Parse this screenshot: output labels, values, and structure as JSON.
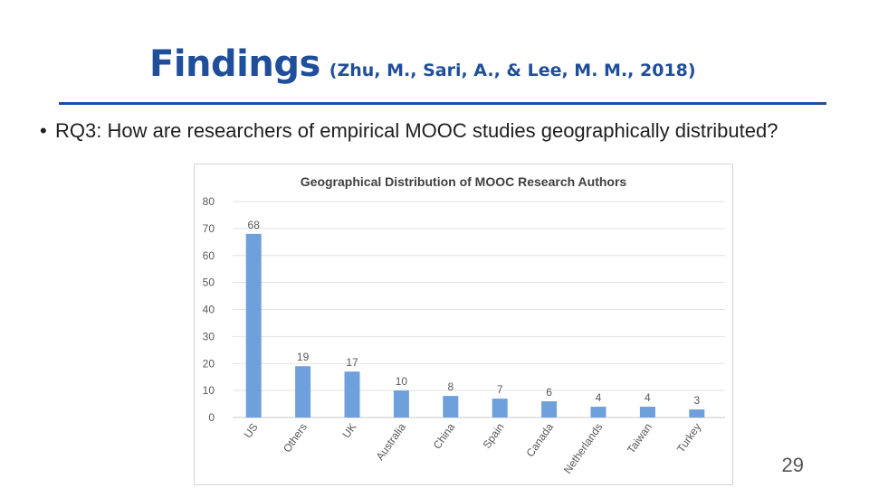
{
  "slide": {
    "title": "Findings",
    "citation": "(Zhu, M., Sari, A., & Lee, M. M., 2018)",
    "bullet_marker": "•",
    "bullet_text": "RQ3: How are researchers of empirical MOOC studies geographically distributed?",
    "page_number": "29",
    "accent_color": "#1f4e9a"
  },
  "chart_data": {
    "type": "bar",
    "title": "Geographical Distribution of MOOC Research Authors",
    "categories": [
      "US",
      "Others",
      "UK",
      "Australia",
      "China",
      "Spain",
      "Canada",
      "Netherlands",
      "Taiwan",
      "Turkey"
    ],
    "values": [
      68,
      19,
      17,
      10,
      8,
      7,
      6,
      4,
      4,
      3
    ],
    "data_labels": [
      "68",
      "19",
      "17",
      "10",
      "8",
      "7",
      "6",
      "4",
      "4",
      "3"
    ],
    "ylim": [
      0,
      80
    ],
    "yticks": [
      "0",
      "10",
      "20",
      "30",
      "40",
      "50",
      "60",
      "70",
      "80"
    ],
    "xlabel": "",
    "ylabel": "",
    "grid": true,
    "legend": false,
    "bar_color": "#6ea0dc"
  }
}
